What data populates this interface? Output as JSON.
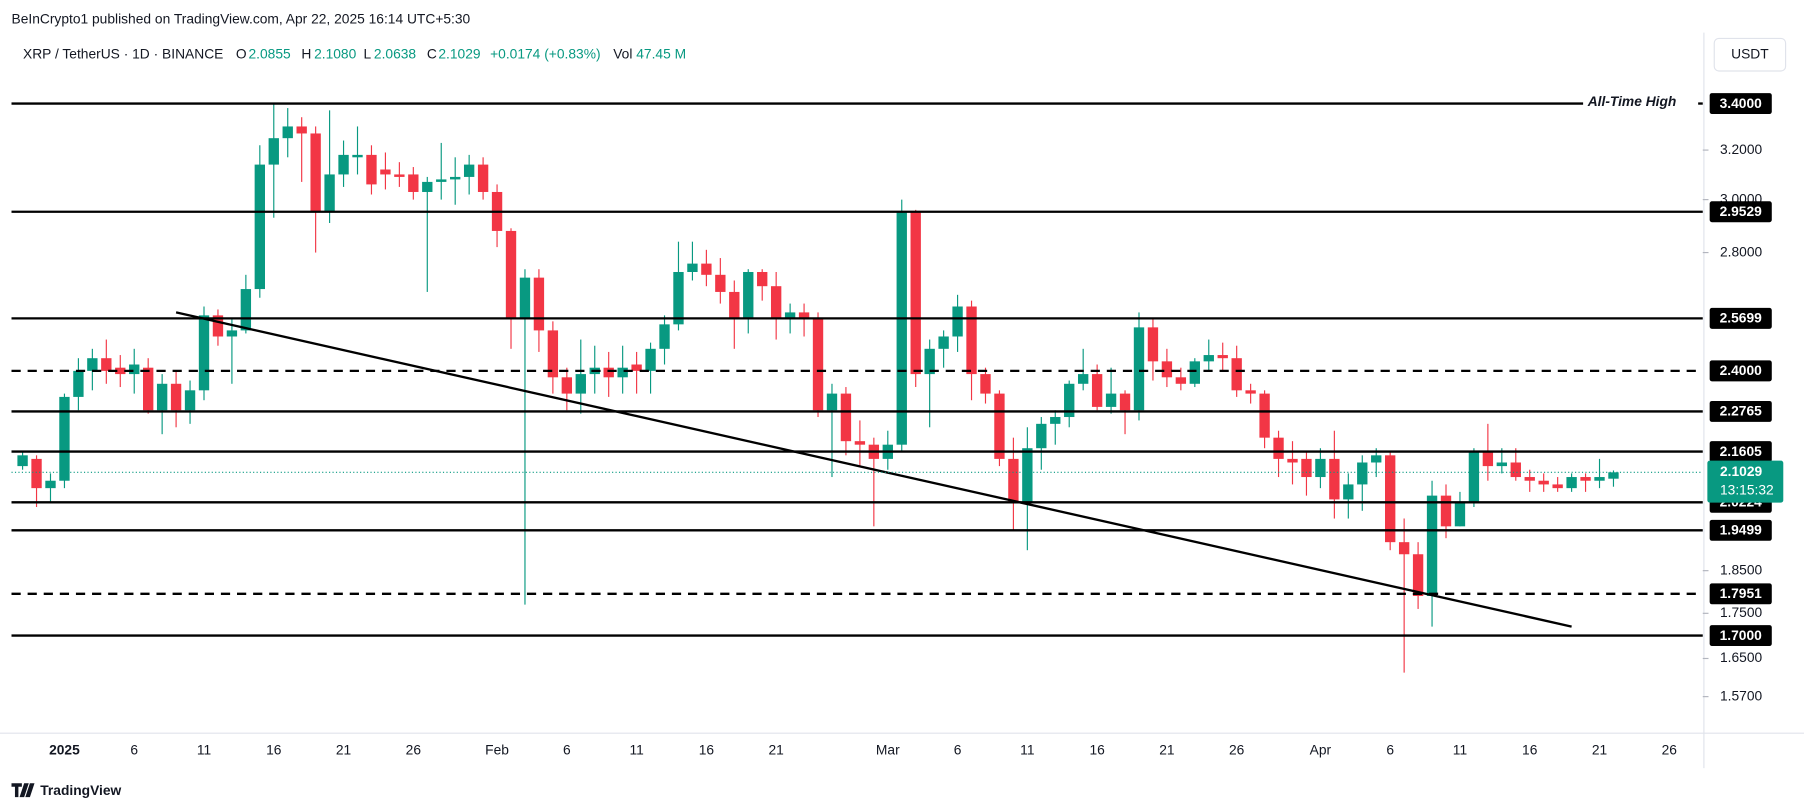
{
  "header": {
    "published": "BeInCrypto1 published on TradingView.com, Apr 22, 2025 16:14 UTC+5:30",
    "symbol": "XRP / TetherUS · 1D · BINANCE",
    "o_label": "O",
    "o_value": "2.0855",
    "h_label": "H",
    "h_value": "2.1080",
    "l_label": "L",
    "l_value": "2.0638",
    "c_label": "C",
    "c_value": "2.1029",
    "change": "+0.0174 (+0.83%)",
    "vol_label": "Vol",
    "vol_value": "47.45 M",
    "currency_button": "USDT",
    "brand": "TradingView"
  },
  "chart_data": {
    "type": "candlestick",
    "log_scale": true,
    "up_color": "#089981",
    "down_color": "#f23645",
    "x": [
      "2024-12-29",
      "2024-12-30",
      "2024-12-31",
      "2025-01-01",
      "2025-01-02",
      "2025-01-03",
      "2025-01-04",
      "2025-01-05",
      "2025-01-06",
      "2025-01-07",
      "2025-01-08",
      "2025-01-09",
      "2025-01-10",
      "2025-01-11",
      "2025-01-12",
      "2025-01-13",
      "2025-01-14",
      "2025-01-15",
      "2025-01-16",
      "2025-01-17",
      "2025-01-18",
      "2025-01-19",
      "2025-01-20",
      "2025-01-21",
      "2025-01-22",
      "2025-01-23",
      "2025-01-24",
      "2025-01-25",
      "2025-01-26",
      "2025-01-27",
      "2025-01-28",
      "2025-01-29",
      "2025-01-30",
      "2025-01-31",
      "2025-02-01",
      "2025-02-02",
      "2025-02-03",
      "2025-02-04",
      "2025-02-05",
      "2025-02-06",
      "2025-02-07",
      "2025-02-08",
      "2025-02-09",
      "2025-02-10",
      "2025-02-11",
      "2025-02-12",
      "2025-02-13",
      "2025-02-14",
      "2025-02-15",
      "2025-02-16",
      "2025-02-17",
      "2025-02-18",
      "2025-02-19",
      "2025-02-20",
      "2025-02-21",
      "2025-02-22",
      "2025-02-23",
      "2025-02-24",
      "2025-02-25",
      "2025-02-26",
      "2025-02-27",
      "2025-02-28",
      "2025-03-01",
      "2025-03-02",
      "2025-03-03",
      "2025-03-04",
      "2025-03-05",
      "2025-03-06",
      "2025-03-07",
      "2025-03-08",
      "2025-03-09",
      "2025-03-10",
      "2025-03-11",
      "2025-03-12",
      "2025-03-13",
      "2025-03-14",
      "2025-03-15",
      "2025-03-16",
      "2025-03-17",
      "2025-03-18",
      "2025-03-19",
      "2025-03-20",
      "2025-03-21",
      "2025-03-22",
      "2025-03-23",
      "2025-03-24",
      "2025-03-25",
      "2025-03-26",
      "2025-03-27",
      "2025-03-28",
      "2025-03-29",
      "2025-03-30",
      "2025-03-31",
      "2025-04-01",
      "2025-04-02",
      "2025-04-03",
      "2025-04-04",
      "2025-04-05",
      "2025-04-06",
      "2025-04-07",
      "2025-04-08",
      "2025-04-09",
      "2025-04-10",
      "2025-04-11",
      "2025-04-12",
      "2025-04-13",
      "2025-04-14",
      "2025-04-15",
      "2025-04-16",
      "2025-04-17",
      "2025-04-18",
      "2025-04-19",
      "2025-04-20",
      "2025-04-21",
      "2025-04-22"
    ],
    "open": [
      2.12,
      2.14,
      2.06,
      2.08,
      2.32,
      2.4,
      2.44,
      2.41,
      2.39,
      2.41,
      2.28,
      2.36,
      2.28,
      2.34,
      2.58,
      2.51,
      2.53,
      2.67,
      3.14,
      3.25,
      3.3,
      3.27,
      2.95,
      3.1,
      3.17,
      3.18,
      3.12,
      3.1,
      3.1,
      3.03,
      3.07,
      3.08,
      3.09,
      3.14,
      3.03,
      2.88,
      2.57,
      2.71,
      2.53,
      2.38,
      2.33,
      2.39,
      2.41,
      2.38,
      2.42,
      2.4,
      2.47,
      2.55,
      2.73,
      2.76,
      2.72,
      2.66,
      2.57,
      2.73,
      2.68,
      2.57,
      2.59,
      2.57,
      2.28,
      2.33,
      2.19,
      2.18,
      2.14,
      2.18,
      2.95,
      2.39,
      2.47,
      2.51,
      2.61,
      2.39,
      2.33,
      2.14,
      2.02,
      2.17,
      2.24,
      2.26,
      2.36,
      2.39,
      2.29,
      2.33,
      2.28,
      2.54,
      2.43,
      2.38,
      2.36,
      2.43,
      2.45,
      2.44,
      2.34,
      2.33,
      2.2,
      2.14,
      2.14,
      2.09,
      2.14,
      2.03,
      2.07,
      2.13,
      2.15,
      1.92,
      1.89,
      1.79,
      2.04,
      1.96,
      2.02,
      2.16,
      2.12,
      2.13,
      2.09,
      2.08,
      2.07,
      2.06,
      2.09,
      2.08,
      2.0855
    ],
    "high": [
      2.16,
      2.15,
      2.1,
      2.33,
      2.44,
      2.47,
      2.5,
      2.45,
      2.47,
      2.44,
      2.39,
      2.4,
      2.37,
      2.61,
      2.6,
      2.57,
      2.72,
      3.22,
      3.4,
      3.38,
      3.34,
      3.3,
      3.37,
      3.24,
      3.3,
      3.22,
      3.19,
      3.15,
      3.13,
      3.09,
      3.23,
      3.17,
      3.18,
      3.17,
      3.06,
      2.89,
      2.74,
      2.74,
      2.56,
      2.41,
      2.5,
      2.48,
      2.46,
      2.48,
      2.46,
      2.49,
      2.58,
      2.84,
      2.84,
      2.81,
      2.78,
      2.7,
      2.74,
      2.74,
      2.73,
      2.62,
      2.62,
      2.59,
      2.36,
      2.35,
      2.25,
      2.2,
      2.22,
      3.0,
      2.96,
      2.5,
      2.53,
      2.65,
      2.63,
      2.41,
      2.34,
      2.2,
      2.23,
      2.26,
      2.28,
      2.37,
      2.47,
      2.42,
      2.41,
      2.34,
      2.59,
      2.57,
      2.47,
      2.41,
      2.44,
      2.5,
      2.49,
      2.48,
      2.36,
      2.34,
      2.22,
      2.19,
      2.16,
      2.17,
      2.22,
      2.1,
      2.15,
      2.17,
      2.16,
      1.98,
      1.92,
      2.08,
      2.07,
      2.05,
      2.17,
      2.24,
      2.17,
      2.17,
      2.11,
      2.1,
      2.09,
      2.1,
      2.1,
      2.14,
      2.108
    ],
    "low": [
      2.11,
      2.01,
      2.02,
      2.06,
      2.28,
      2.34,
      2.36,
      2.35,
      2.33,
      2.27,
      2.21,
      2.23,
      2.24,
      2.31,
      2.48,
      2.36,
      2.52,
      2.64,
      2.93,
      3.17,
      3.07,
      2.8,
      2.91,
      3.05,
      3.1,
      3.02,
      3.04,
      3.05,
      3.0,
      2.66,
      3.0,
      2.98,
      3.02,
      3.0,
      2.82,
      2.47,
      1.77,
      2.46,
      2.33,
      2.28,
      2.27,
      2.33,
      2.32,
      2.33,
      2.33,
      2.33,
      2.42,
      2.53,
      2.7,
      2.68,
      2.62,
      2.47,
      2.52,
      2.63,
      2.5,
      2.52,
      2.51,
      2.26,
      2.09,
      2.15,
      2.12,
      1.96,
      2.11,
      2.16,
      2.35,
      2.23,
      2.41,
      2.46,
      2.31,
      2.3,
      2.12,
      1.95,
      1.9,
      2.11,
      2.18,
      2.23,
      2.34,
      2.28,
      2.27,
      2.21,
      2.25,
      2.37,
      2.35,
      2.34,
      2.35,
      2.4,
      2.4,
      2.32,
      2.3,
      2.17,
      2.09,
      2.07,
      2.04,
      2.06,
      1.98,
      1.98,
      2.0,
      2.09,
      1.9,
      1.62,
      1.76,
      1.72,
      1.93,
      1.96,
      2.01,
      2.08,
      2.1,
      2.08,
      2.05,
      2.05,
      2.05,
      2.05,
      2.05,
      2.06,
      2.0638
    ],
    "close": [
      2.15,
      2.06,
      2.08,
      2.32,
      2.4,
      2.44,
      2.4,
      2.39,
      2.42,
      2.28,
      2.36,
      2.28,
      2.34,
      2.58,
      2.51,
      2.53,
      2.67,
      3.14,
      3.25,
      3.3,
      3.27,
      2.95,
      3.1,
      3.18,
      3.18,
      3.06,
      3.1,
      3.09,
      3.03,
      3.07,
      3.08,
      3.09,
      3.14,
      3.03,
      2.88,
      2.57,
      2.71,
      2.53,
      2.38,
      2.33,
      2.39,
      2.41,
      2.38,
      2.41,
      2.4,
      2.47,
      2.55,
      2.73,
      2.76,
      2.72,
      2.66,
      2.57,
      2.73,
      2.68,
      2.57,
      2.59,
      2.57,
      2.28,
      2.33,
      2.19,
      2.18,
      2.14,
      2.18,
      2.95,
      2.39,
      2.47,
      2.51,
      2.61,
      2.39,
      2.33,
      2.14,
      2.02,
      2.17,
      2.24,
      2.26,
      2.36,
      2.39,
      2.29,
      2.33,
      2.28,
      2.54,
      2.43,
      2.38,
      2.36,
      2.43,
      2.45,
      2.44,
      2.34,
      2.33,
      2.2,
      2.14,
      2.13,
      2.09,
      2.14,
      2.03,
      2.07,
      2.13,
      2.15,
      1.92,
      1.89,
      1.79,
      2.04,
      1.96,
      2.02,
      2.16,
      2.12,
      2.13,
      2.09,
      2.08,
      2.07,
      2.06,
      2.09,
      2.08,
      2.09,
      2.1029
    ],
    "xlim": [
      "2024-12-28",
      "2025-04-29"
    ],
    "ylim": [
      1.497,
      3.718
    ],
    "xticks": [
      {
        "value": "2025-01-01",
        "label": "2025"
      },
      {
        "value": "2025-01-06",
        "label": "6"
      },
      {
        "value": "2025-01-11",
        "label": "11"
      },
      {
        "value": "2025-01-16",
        "label": "16"
      },
      {
        "value": "2025-01-21",
        "label": "21"
      },
      {
        "value": "2025-01-26",
        "label": "26"
      },
      {
        "value": "2025-02-01",
        "label": "Feb"
      },
      {
        "value": "2025-02-06",
        "label": "6"
      },
      {
        "value": "2025-02-11",
        "label": "11"
      },
      {
        "value": "2025-02-16",
        "label": "16"
      },
      {
        "value": "2025-02-21",
        "label": "21"
      },
      {
        "value": "2025-03-01",
        "label": "Mar"
      },
      {
        "value": "2025-03-06",
        "label": "6"
      },
      {
        "value": "2025-03-11",
        "label": "11"
      },
      {
        "value": "2025-03-16",
        "label": "16"
      },
      {
        "value": "2025-03-21",
        "label": "21"
      },
      {
        "value": "2025-03-26",
        "label": "26"
      },
      {
        "value": "2025-04-01",
        "label": "Apr"
      },
      {
        "value": "2025-04-06",
        "label": "6"
      },
      {
        "value": "2025-04-11",
        "label": "11"
      },
      {
        "value": "2025-04-16",
        "label": "16"
      },
      {
        "value": "2025-04-21",
        "label": "21"
      },
      {
        "value": "2025-04-26",
        "label": "26"
      }
    ],
    "yticks": [
      {
        "value": 3.2,
        "label": "3.2000"
      },
      {
        "value": 3.0,
        "label": "3.0000"
      },
      {
        "value": 2.8,
        "label": "2.8000"
      },
      {
        "value": 1.85,
        "label": "1.8500"
      },
      {
        "value": 1.75,
        "label": "1.7500"
      },
      {
        "value": 1.65,
        "label": "1.6500"
      },
      {
        "value": 1.57,
        "label": "1.5700"
      }
    ],
    "levels": [
      {
        "value": 3.4,
        "label": "3.4000",
        "dashed": false
      },
      {
        "value": 2.9529,
        "label": "2.9529",
        "dashed": false
      },
      {
        "value": 2.5699,
        "label": "2.5699",
        "dashed": false
      },
      {
        "value": 2.4,
        "label": "2.4000",
        "dashed": true
      },
      {
        "value": 2.2765,
        "label": "2.2765",
        "dashed": false
      },
      {
        "value": 2.1605,
        "label": "2.1605",
        "dashed": false
      },
      {
        "value": 2.0224,
        "label": "2.0224",
        "dashed": false
      },
      {
        "value": 1.9499,
        "label": "1.9499",
        "dashed": false
      },
      {
        "value": 1.7951,
        "label": "1.7951",
        "dashed": true
      },
      {
        "value": 1.7,
        "label": "1.7000",
        "dashed": false
      }
    ],
    "annotation": "All-Time High",
    "last_price": {
      "value": 2.1029,
      "label": "2.1029",
      "countdown": "13:15:32",
      "color": "#089981"
    },
    "trendline": {
      "x": [
        "2025-01-09",
        "2025-04-19"
      ],
      "values": [
        2.59,
        1.72
      ]
    }
  }
}
